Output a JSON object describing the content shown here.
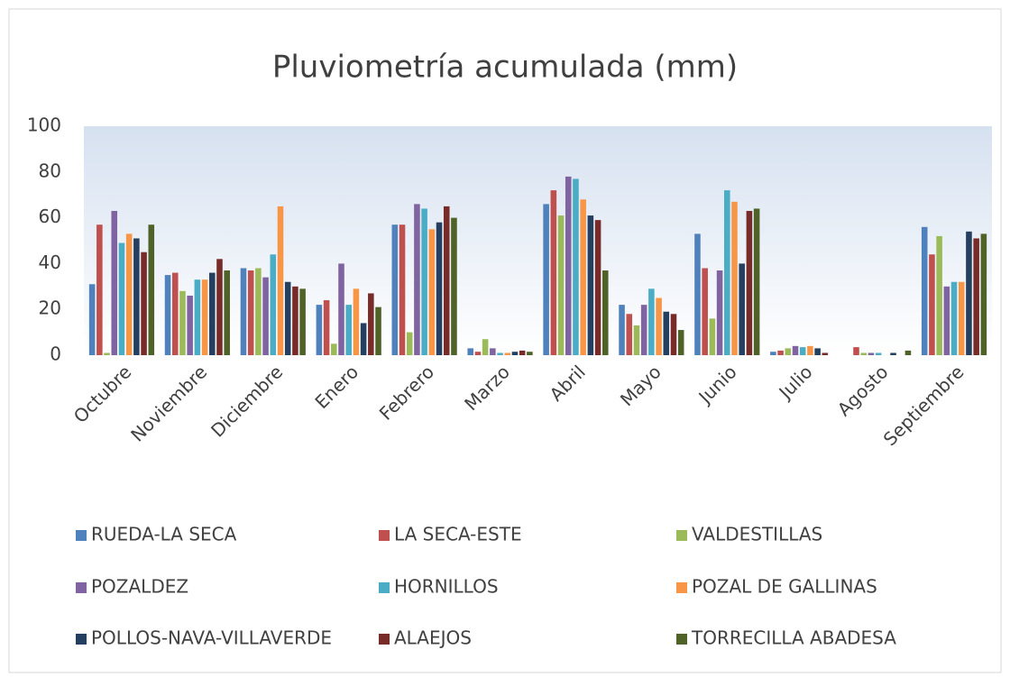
{
  "chart_data": {
    "type": "bar",
    "title": "Pluviometría acumulada (mm)",
    "categories": [
      "Octubre",
      "Noviembre",
      "Diciembre",
      "Enero",
      "Febrero",
      "Marzo",
      "Abril",
      "Mayo",
      "Junio",
      "Julio",
      "Agosto",
      "Septiembre"
    ],
    "series": [
      {
        "name": "RUEDA-LA SECA",
        "color": "#4f81bd",
        "values": [
          31,
          35,
          38,
          22,
          57,
          3,
          66,
          22,
          53,
          1.5,
          0,
          56
        ]
      },
      {
        "name": "LA SECA-ESTE",
        "color": "#c0504d",
        "values": [
          57,
          36,
          37,
          24,
          57,
          1.5,
          72,
          18,
          38,
          2,
          3.5,
          44
        ]
      },
      {
        "name": "VALDESTILLAS",
        "color": "#9bbb59",
        "values": [
          1,
          28,
          38,
          5,
          10,
          7,
          61,
          13,
          16,
          3,
          1,
          52
        ]
      },
      {
        "name": "POZALDEZ",
        "color": "#8064a2",
        "values": [
          63,
          26,
          34,
          40,
          66,
          3,
          78,
          22,
          37,
          4,
          1,
          30
        ]
      },
      {
        "name": "HORNILLOS",
        "color": "#4bacc6",
        "values": [
          49,
          33,
          44,
          22,
          64,
          1,
          77,
          29,
          72,
          3.5,
          1,
          32
        ]
      },
      {
        "name": "POZAL DE GALLINAS",
        "color": "#f79646",
        "values": [
          53,
          33,
          65,
          29,
          55,
          1,
          68,
          25,
          67,
          4,
          0,
          32
        ]
      },
      {
        "name": "POLLOS-NAVA-VILLAVERDE",
        "color": "#243f60",
        "values": [
          51,
          36,
          32,
          14,
          58,
          1.5,
          61,
          19,
          40,
          3,
          1,
          54
        ]
      },
      {
        "name": "ALAEJOS",
        "color": "#772c2a",
        "values": [
          45,
          42,
          30,
          27,
          65,
          2,
          59,
          18,
          63,
          1,
          0,
          51
        ]
      },
      {
        "name": "TORRECILLA ABADESA",
        "color": "#4f6228",
        "values": [
          57,
          37,
          29,
          21,
          60,
          1.5,
          37,
          11,
          64,
          0,
          2,
          53
        ]
      }
    ],
    "ylim": [
      0,
      100
    ],
    "yticks": [
      0,
      20,
      40,
      60,
      80,
      100
    ],
    "legend": "bottom"
  }
}
